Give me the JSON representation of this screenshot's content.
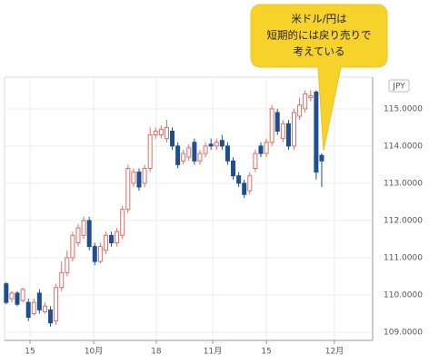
{
  "chart_data": {
    "type": "candlestick",
    "unit_label": "JPY",
    "annotation": [
      "米ドル/円は",
      "短期的には戻り売りで",
      "考えている"
    ],
    "x": [
      0,
      1,
      2,
      3,
      4,
      5,
      6,
      7,
      8,
      9,
      10,
      11,
      12,
      13,
      14,
      15,
      16,
      17,
      18,
      19,
      20,
      21,
      22,
      23,
      24,
      25,
      26,
      27,
      28,
      29,
      30,
      31,
      32,
      33,
      34,
      35,
      36,
      37,
      38,
      39,
      40,
      41,
      42,
      43,
      44,
      45,
      46,
      47,
      48,
      49,
      50,
      51,
      52,
      53,
      54,
      55,
      56,
      57
    ],
    "open": [
      110.3,
      109.9,
      110.05,
      109.85,
      109.8,
      109.5,
      110.05,
      109.55,
      109.6,
      109.3,
      110.2,
      110.6,
      111.0,
      111.4,
      111.6,
      112.0,
      111.3,
      110.9,
      111.2,
      111.6,
      111.4,
      111.6,
      112.3,
      113.0,
      113.3,
      113.0,
      113.4,
      114.3,
      114.3,
      114.2,
      114.4,
      114.0,
      113.6,
      113.7,
      114.1,
      113.6,
      113.8,
      114.05,
      114.0,
      114.15,
      114.0,
      113.6,
      113.2,
      113.0,
      112.8,
      113.4,
      114.0,
      113.8,
      114.1,
      114.9,
      114.2,
      114.6,
      114.0,
      114.8,
      115.0,
      115.3,
      115.45,
      113.75
    ],
    "high": [
      110.35,
      110.1,
      110.1,
      110.2,
      109.9,
      109.9,
      110.15,
      109.8,
      109.7,
      110.3,
      110.9,
      111.2,
      111.7,
      111.9,
      112.1,
      112.1,
      111.4,
      111.4,
      111.7,
      111.7,
      111.8,
      112.4,
      113.5,
      113.4,
      113.4,
      113.5,
      114.5,
      114.5,
      114.55,
      114.7,
      114.5,
      114.1,
      113.9,
      114.05,
      114.2,
      113.9,
      114.1,
      114.2,
      114.2,
      114.3,
      114.1,
      113.7,
      113.3,
      113.1,
      113.3,
      113.9,
      114.1,
      114.2,
      115.1,
      115.0,
      114.7,
      114.7,
      115.0,
      115.3,
      115.5,
      115.5,
      115.5,
      113.8
    ],
    "low": [
      109.75,
      109.8,
      109.7,
      109.8,
      109.3,
      109.45,
      109.5,
      109.5,
      109.15,
      109.2,
      110.1,
      110.5,
      110.9,
      111.3,
      111.5,
      111.2,
      110.8,
      110.85,
      111.1,
      111.3,
      111.3,
      111.5,
      112.2,
      112.9,
      112.8,
      112.9,
      113.3,
      114.2,
      114.2,
      114.1,
      113.9,
      113.4,
      113.5,
      113.6,
      113.5,
      113.5,
      113.7,
      113.9,
      113.9,
      113.9,
      113.5,
      113.1,
      112.9,
      112.6,
      112.7,
      113.3,
      113.7,
      113.7,
      114.0,
      114.3,
      114.1,
      113.9,
      113.9,
      114.7,
      114.9,
      115.2,
      113.1,
      112.9
    ],
    "close": [
      109.8,
      110.05,
      109.75,
      110.15,
      109.4,
      109.8,
      109.6,
      109.7,
      109.25,
      110.2,
      110.6,
      111.0,
      111.6,
      111.8,
      112.0,
      111.3,
      110.9,
      111.3,
      111.6,
      111.4,
      111.7,
      112.3,
      113.4,
      113.3,
      112.9,
      113.4,
      114.3,
      114.4,
      114.45,
      114.5,
      114.0,
      113.5,
      113.8,
      113.95,
      113.6,
      113.8,
      114.0,
      114.0,
      114.1,
      114.0,
      113.6,
      113.2,
      113.0,
      112.7,
      113.2,
      113.8,
      113.8,
      114.1,
      115.0,
      114.4,
      114.6,
      114.0,
      114.9,
      115.1,
      115.4,
      115.35,
      113.3,
      113.6
    ],
    "up_color": "#e06c62",
    "down_color": "#1d4f91",
    "xlim": [
      -0.3,
      66.2
    ],
    "xticks": [
      {
        "value": 4.3,
        "label": "15"
      },
      {
        "value": 15.8,
        "label": "10月"
      },
      {
        "value": 27.1,
        "label": "18"
      },
      {
        "value": 37.3,
        "label": "11月"
      },
      {
        "value": 47.0,
        "label": "15"
      },
      {
        "value": 59.3,
        "label": "12月"
      }
    ],
    "ylim": [
      108.78,
      115.85
    ],
    "yticks": [
      {
        "value": 109,
        "label": "109.0000"
      },
      {
        "value": 110,
        "label": "110.0000"
      },
      {
        "value": 111,
        "label": "111.0000"
      },
      {
        "value": 112,
        "label": "112.0000"
      },
      {
        "value": 113,
        "label": "113.0000"
      },
      {
        "value": 114,
        "label": "114.0000"
      },
      {
        "value": 115,
        "label": "115.0000"
      }
    ],
    "grid": true
  }
}
